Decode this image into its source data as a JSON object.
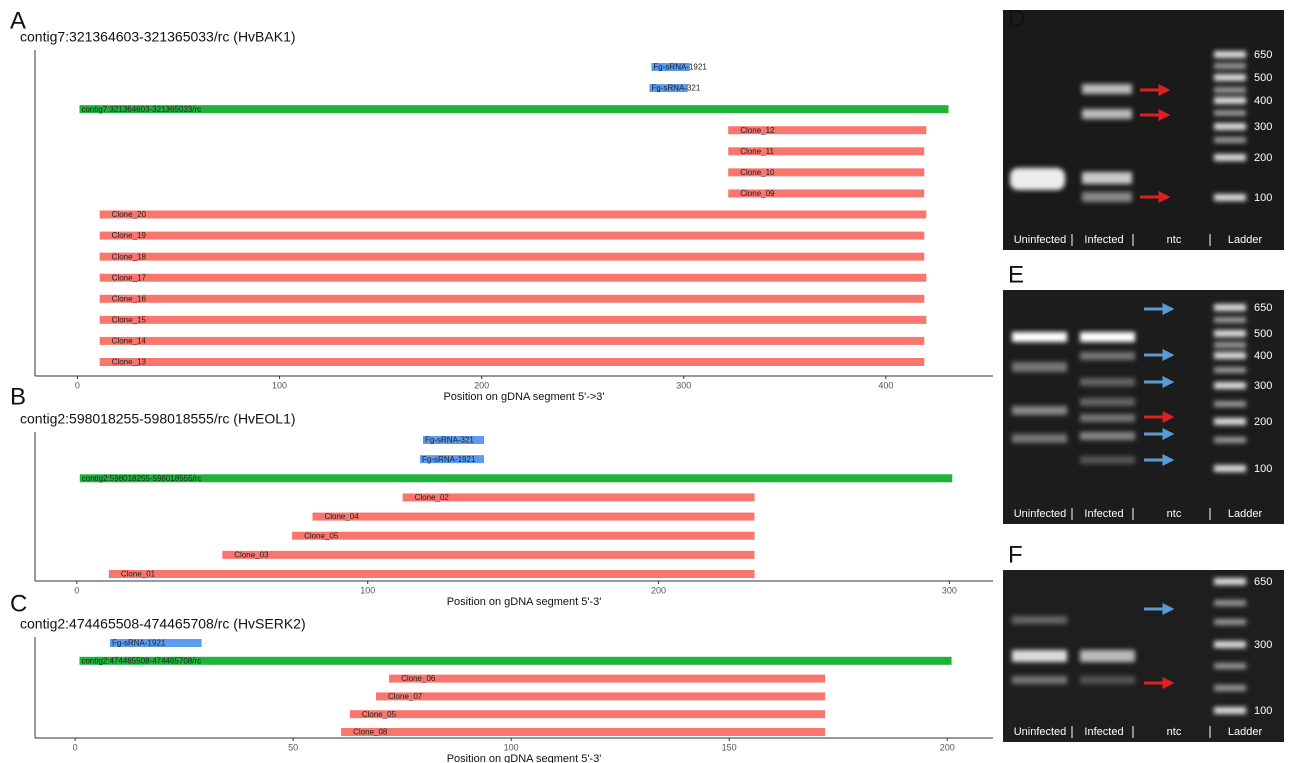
{
  "chart_data": [
    {
      "type": "segment",
      "panel": "A",
      "title": "contig7:321364603-321365033/rc (HvBAK1)",
      "xlabel": "Position on gDNA segment 5'->3'",
      "xlim": [
        -21,
        453
      ],
      "xticks": [
        0,
        100,
        200,
        300,
        400
      ],
      "colors": {
        "sRNA": "#5b9bf0",
        "contig": "#1fb33c",
        "clone": "#f8766d"
      },
      "rows": [
        {
          "label": "Fg-sRNA-1921",
          "kind": "sRNA",
          "start": 284,
          "end": 303
        },
        {
          "label": "Fg-sRNA-321",
          "kind": "sRNA",
          "start": 283,
          "end": 302
        },
        {
          "label": "contig7:321364603-321365033/rc",
          "kind": "contig",
          "start": 1,
          "end": 431
        },
        {
          "label": "Clone_12",
          "kind": "clone",
          "start": 322,
          "end": 420
        },
        {
          "label": "Clone_11",
          "kind": "clone",
          "start": 322,
          "end": 419
        },
        {
          "label": "Clone_10",
          "kind": "clone",
          "start": 322,
          "end": 419
        },
        {
          "label": "Clone_09",
          "kind": "clone",
          "start": 322,
          "end": 419
        },
        {
          "label": "Clone_20",
          "kind": "clone",
          "start": 11,
          "end": 420
        },
        {
          "label": "Clone_19",
          "kind": "clone",
          "start": 11,
          "end": 419
        },
        {
          "label": "Clone_18",
          "kind": "clone",
          "start": 11,
          "end": 419
        },
        {
          "label": "Clone_17",
          "kind": "clone",
          "start": 11,
          "end": 420
        },
        {
          "label": "Clone_16",
          "kind": "clone",
          "start": 11,
          "end": 419
        },
        {
          "label": "Clone_15",
          "kind": "clone",
          "start": 11,
          "end": 420
        },
        {
          "label": "Clone_14",
          "kind": "clone",
          "start": 11,
          "end": 419
        },
        {
          "label": "Clone_13",
          "kind": "clone",
          "start": 11,
          "end": 419
        }
      ]
    },
    {
      "type": "segment",
      "panel": "B",
      "title": "contig2:598018255-598018555/rc (HvEOL1)",
      "xlabel": "Position on gDNA segment 5'-3'",
      "xlim": [
        -14.4,
        315
      ],
      "xticks": [
        0,
        100,
        200,
        300
      ],
      "colors": {
        "sRNA": "#5b9bf0",
        "contig": "#1fb33c",
        "clone": "#f8766d"
      },
      "rows": [
        {
          "label": "Fg-sRNA-321",
          "kind": "sRNA",
          "start": 119,
          "end": 140
        },
        {
          "label": "Fg-sRNA-1921",
          "kind": "sRNA",
          "start": 118,
          "end": 140
        },
        {
          "label": "contig2:598018255-598018555/rc",
          "kind": "contig",
          "start": 1,
          "end": 301
        },
        {
          "label": "Clone_02",
          "kind": "clone",
          "start": 112,
          "end": 233
        },
        {
          "label": "Clone_04",
          "kind": "clone",
          "start": 81,
          "end": 233
        },
        {
          "label": "Clone_05",
          "kind": "clone",
          "start": 74,
          "end": 233
        },
        {
          "label": "Clone_03",
          "kind": "clone",
          "start": 50,
          "end": 233
        },
        {
          "label": "Clone_01",
          "kind": "clone",
          "start": 11,
          "end": 233
        }
      ]
    },
    {
      "type": "segment",
      "panel": "C",
      "title": "contig2:474465508-474465708/rc (HvSERK2)",
      "xlabel": "Position on gDNA segment 5'-3'",
      "xlim": [
        -9.2,
        210.5
      ],
      "xticks": [
        0,
        50,
        100,
        150,
        200
      ],
      "colors": {
        "sRNA": "#5b9bf0",
        "contig": "#1fb33c",
        "clone": "#f8766d"
      },
      "rows": [
        {
          "label": "Fg-sRNA-1921",
          "kind": "sRNA",
          "start": 8,
          "end": 29
        },
        {
          "label": "contig2:474465508-474465708/rc",
          "kind": "contig",
          "start": 1,
          "end": 201
        },
        {
          "label": "Clone_06",
          "kind": "clone",
          "start": 72,
          "end": 172
        },
        {
          "label": "Clone_07",
          "kind": "clone",
          "start": 69,
          "end": 172
        },
        {
          "label": "Clone_05",
          "kind": "clone",
          "start": 63,
          "end": 172
        },
        {
          "label": "Clone_08",
          "kind": "clone",
          "start": 61,
          "end": 172
        }
      ]
    }
  ],
  "gels": [
    {
      "panel": "D",
      "lanes": [
        "Uninfected",
        "Infected",
        "ntc",
        "Ladder"
      ],
      "ladder": [
        650,
        500,
        400,
        300,
        200,
        100
      ]
    },
    {
      "panel": "E",
      "lanes": [
        "Uninfected",
        "Infected",
        "ntc",
        "Ladder"
      ],
      "ladder": [
        650,
        500,
        400,
        300,
        200,
        100
      ]
    },
    {
      "panel": "F",
      "lanes": [
        "Uninfected",
        "Infected",
        "ntc",
        "Ladder"
      ],
      "ladder": [
        650,
        300,
        100
      ]
    }
  ]
}
